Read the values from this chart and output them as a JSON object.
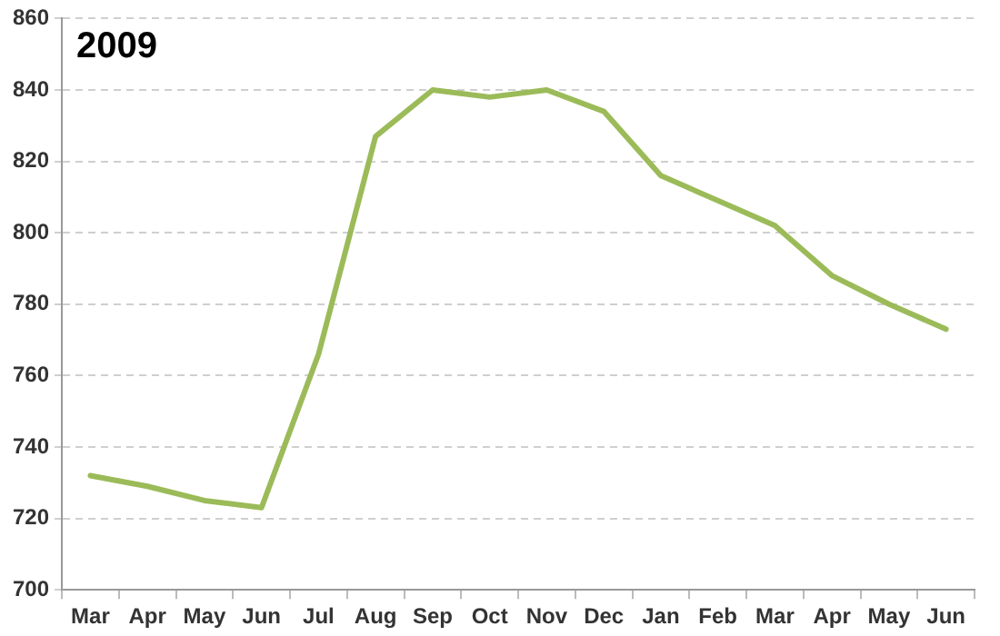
{
  "chart_data": {
    "type": "line",
    "title": "2009",
    "categories": [
      "Mar",
      "Apr",
      "May",
      "Jun",
      "Jul",
      "Aug",
      "Sep",
      "Oct",
      "Nov",
      "Dec",
      "Jan",
      "Feb",
      "Mar",
      "Apr",
      "May",
      "Jun"
    ],
    "series": [
      {
        "color": "#9bbb59",
        "values": [
          732,
          729,
          725,
          723,
          766,
          827,
          840,
          838,
          840,
          834,
          816,
          809,
          802,
          788,
          780,
          773
        ]
      }
    ],
    "ylim": [
      700,
      860
    ],
    "yticks": [
      700,
      720,
      740,
      760,
      780,
      800,
      820,
      840,
      860
    ],
    "grid": "y",
    "legend": false,
    "marker": "none",
    "line_style": "solid"
  }
}
